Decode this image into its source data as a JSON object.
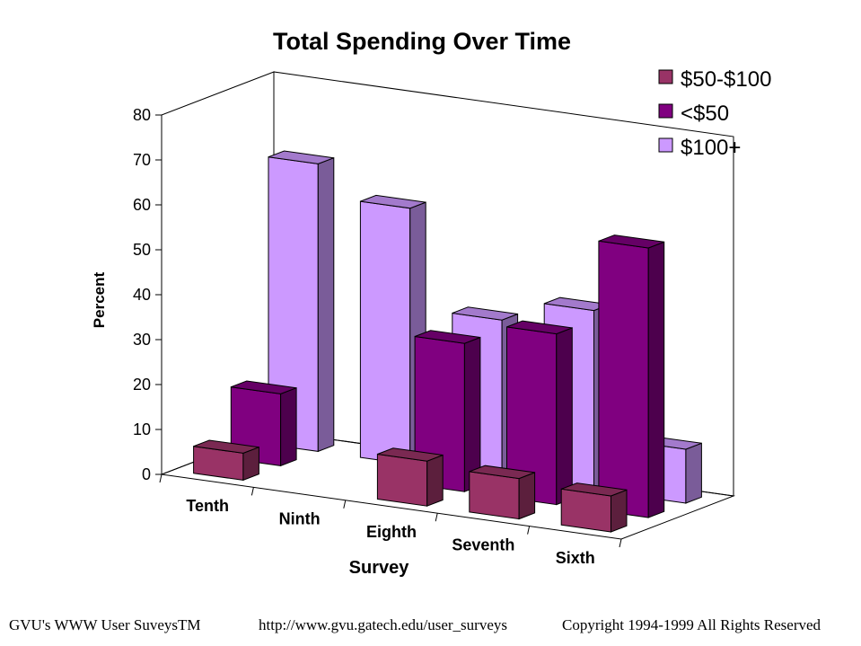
{
  "chart_data": {
    "type": "bar",
    "title": "Total Spending Over Time",
    "xlabel": "Survey",
    "ylabel": "Percent",
    "ylim": [
      0,
      80
    ],
    "yticks": [
      0,
      10,
      20,
      30,
      40,
      50,
      60,
      70,
      80
    ],
    "categories": [
      "Tenth",
      "Ninth",
      "Eighth",
      "Seventh",
      "Sixth"
    ],
    "legend_position": "top-right",
    "grid": false,
    "series": [
      {
        "name": "$50-$100",
        "color": "#993366",
        "values": [
          6,
          0,
          10,
          9,
          8
        ]
      },
      {
        "name": "<$50",
        "color": "#800080",
        "values": [
          16,
          0,
          33,
          38,
          60
        ]
      },
      {
        "name": "$100+",
        "color": "#cc99ff",
        "values": [
          64,
          57,
          35,
          40,
          12
        ]
      }
    ]
  },
  "footer": {
    "left": "GVU's WWW User SuveysTM",
    "center": "http://www.gvu.gatech.edu/user_surveys",
    "right": "Copyright 1994-1999 All Rights Reserved"
  }
}
